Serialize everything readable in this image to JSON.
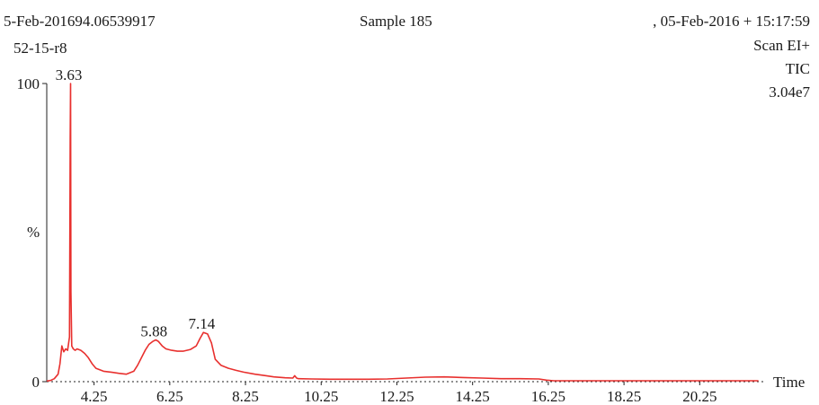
{
  "header": {
    "left_line1": "5-Feb-201694.06539917",
    "left_line2": "52-15-r8",
    "center": "Sample 185",
    "right_line1": ",  05-Feb-2016 + 15:17:59",
    "right_line2": "Scan EI+",
    "right_line3": "TIC",
    "right_line4": "3.04e7"
  },
  "chart_data": {
    "type": "line",
    "xlabel": "Time",
    "ylabel": "%",
    "xlim": [
      3.0,
      22.0
    ],
    "ylim": [
      0,
      100
    ],
    "x_ticks": [
      "4.25",
      "6.25",
      "8.25",
      "10.25",
      "12.25",
      "14.25",
      "16.25",
      "18.25",
      "20.25"
    ],
    "y_ticks": [
      "0",
      "100"
    ],
    "line_color": "#e8302e",
    "grid": false,
    "peak_labels": [
      {
        "x": 3.63,
        "y": 100,
        "label": "3.63"
      },
      {
        "x": 5.88,
        "y": 14,
        "label": "5.88"
      },
      {
        "x": 7.14,
        "y": 16.5,
        "label": "7.14"
      }
    ],
    "series": [
      {
        "x": [
          3.0,
          3.1,
          3.2,
          3.3,
          3.35,
          3.4,
          3.45,
          3.5,
          3.55,
          3.6,
          3.62,
          3.63,
          3.64,
          3.66,
          3.7,
          3.75,
          3.8,
          3.9,
          4.0,
          4.1,
          4.2,
          4.3,
          4.5,
          4.7,
          4.9,
          5.1,
          5.3,
          5.4,
          5.5,
          5.6,
          5.7,
          5.8,
          5.88,
          5.95,
          6.05,
          6.15,
          6.3,
          6.45,
          6.6,
          6.8,
          6.95,
          7.05,
          7.14,
          7.25,
          7.35,
          7.45,
          7.6,
          7.8,
          8.0,
          8.2,
          8.5,
          8.8,
          9.0,
          9.3,
          9.5,
          9.55,
          9.6,
          9.65,
          10.0,
          10.5,
          11.0,
          11.5,
          12.0,
          12.5,
          13.0,
          13.5,
          14.0,
          14.5,
          15.0,
          15.5,
          16.0,
          16.2,
          16.4,
          17.0,
          18.0,
          19.0,
          20.0,
          21.0,
          21.8
        ],
        "y": [
          0.2,
          0.4,
          1.0,
          2.5,
          6.0,
          12.0,
          10.0,
          11.0,
          10.5,
          15.0,
          82.0,
          100.0,
          30.0,
          12.0,
          11.0,
          10.5,
          11.0,
          10.5,
          9.5,
          8.0,
          6.0,
          4.5,
          3.5,
          3.2,
          2.8,
          2.5,
          3.5,
          5.5,
          8.0,
          10.5,
          12.5,
          13.5,
          14.0,
          13.5,
          12.0,
          11.0,
          10.5,
          10.2,
          10.2,
          10.8,
          12.0,
          14.5,
          16.5,
          16.0,
          13.0,
          7.5,
          5.5,
          4.5,
          3.8,
          3.2,
          2.5,
          2.0,
          1.6,
          1.3,
          1.2,
          2.0,
          1.2,
          1.0,
          0.9,
          0.8,
          0.8,
          0.8,
          0.9,
          1.2,
          1.5,
          1.6,
          1.4,
          1.2,
          1.0,
          1.0,
          0.9,
          0.5,
          0.3,
          0.3,
          0.3,
          0.3,
          0.3,
          0.3,
          0.3
        ]
      }
    ]
  }
}
